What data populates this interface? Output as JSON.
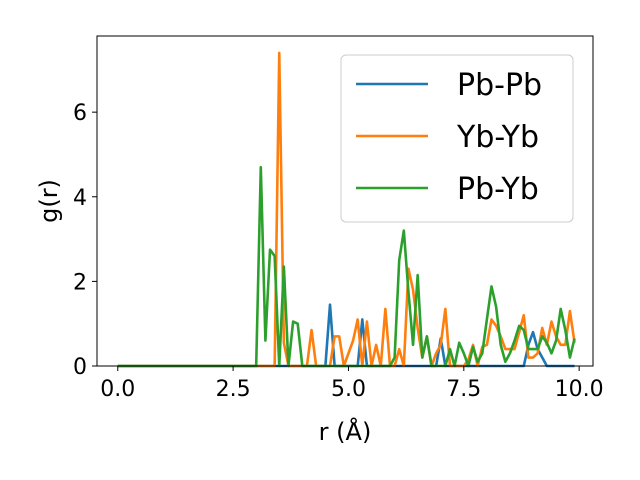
{
  "chart_data": {
    "type": "line",
    "title": "",
    "xlabel": "r (Å)",
    "ylabel": "g(r)",
    "xlim": [
      -0.45,
      10.3
    ],
    "ylim": [
      0,
      7.8
    ],
    "xticks": [
      0.0,
      2.5,
      5.0,
      7.5,
      10.0
    ],
    "xtick_labels": [
      "0.0",
      "2.5",
      "5.0",
      "7.5",
      "10.0"
    ],
    "yticks": [
      0,
      2,
      4,
      6
    ],
    "ytick_labels": [
      "0",
      "2",
      "4",
      "6"
    ],
    "grid": false,
    "legend": "top-right",
    "series": [
      {
        "name": "Pb-Pb",
        "color": "#1f77b4",
        "points": [
          [
            0,
            0
          ],
          [
            4.5,
            0
          ],
          [
            4.6,
            1.45
          ],
          [
            4.7,
            0
          ],
          [
            5.2,
            0
          ],
          [
            5.3,
            1.1
          ],
          [
            5.4,
            0
          ],
          [
            6.9,
            0
          ],
          [
            7.0,
            0.65
          ],
          [
            7.1,
            0
          ],
          [
            8.8,
            0
          ],
          [
            8.9,
            0.5
          ],
          [
            9.0,
            0.8
          ],
          [
            9.1,
            0.4
          ],
          [
            9.2,
            0.2
          ],
          [
            9.3,
            0
          ],
          [
            9.9,
            0
          ]
        ]
      },
      {
        "name": "Yb-Yb",
        "color": "#ff7f0e",
        "points": [
          [
            0,
            0
          ],
          [
            3.4,
            0
          ],
          [
            3.5,
            7.4
          ],
          [
            3.6,
            0.55
          ],
          [
            3.7,
            0
          ],
          [
            4.1,
            0
          ],
          [
            4.2,
            0.85
          ],
          [
            4.3,
            0
          ],
          [
            4.6,
            0
          ],
          [
            4.7,
            0.7
          ],
          [
            4.8,
            0.7
          ],
          [
            4.9,
            0
          ],
          [
            5.1,
            0.6
          ],
          [
            5.2,
            1.1
          ],
          [
            5.3,
            0
          ],
          [
            5.4,
            1.05
          ],
          [
            5.5,
            0
          ],
          [
            5.6,
            0.5
          ],
          [
            5.7,
            0
          ],
          [
            5.8,
            1.35
          ],
          [
            5.9,
            0
          ],
          [
            6.0,
            0
          ],
          [
            6.1,
            0.4
          ],
          [
            6.2,
            0
          ],
          [
            6.3,
            2.3
          ],
          [
            6.4,
            1.8
          ],
          [
            6.5,
            0.9
          ],
          [
            6.6,
            0.2
          ],
          [
            6.7,
            0.7
          ],
          [
            6.8,
            0
          ],
          [
            6.9,
            0.3
          ],
          [
            7.0,
            0.5
          ],
          [
            7.1,
            1.35
          ],
          [
            7.2,
            0
          ],
          [
            7.5,
            0
          ],
          [
            7.6,
            0.15
          ],
          [
            7.7,
            0.5
          ],
          [
            7.8,
            0
          ],
          [
            7.9,
            0.45
          ],
          [
            8.0,
            0.5
          ],
          [
            8.1,
            1.1
          ],
          [
            8.2,
            0.95
          ],
          [
            8.3,
            0.7
          ],
          [
            8.4,
            0.4
          ],
          [
            8.5,
            0.4
          ],
          [
            8.6,
            0.4
          ],
          [
            8.7,
            0.8
          ],
          [
            8.8,
            1.2
          ],
          [
            8.9,
            0.2
          ],
          [
            9.0,
            0.2
          ],
          [
            9.1,
            0.3
          ],
          [
            9.2,
            0.9
          ],
          [
            9.3,
            0.5
          ],
          [
            9.4,
            1.05
          ],
          [
            9.5,
            0.7
          ],
          [
            9.6,
            0.5
          ],
          [
            9.7,
            0.5
          ],
          [
            9.8,
            1.3
          ],
          [
            9.9,
            0.55
          ]
        ]
      },
      {
        "name": "Pb-Yb",
        "color": "#2ca02c",
        "points": [
          [
            0,
            0
          ],
          [
            3.0,
            0
          ],
          [
            3.1,
            4.7
          ],
          [
            3.2,
            0.6
          ],
          [
            3.3,
            2.75
          ],
          [
            3.4,
            2.6
          ],
          [
            3.5,
            0
          ],
          [
            3.6,
            2.35
          ],
          [
            3.7,
            0
          ],
          [
            3.8,
            1.05
          ],
          [
            3.9,
            1.0
          ],
          [
            4.0,
            0
          ],
          [
            5.9,
            0
          ],
          [
            6.0,
            0.2
          ],
          [
            6.1,
            2.5
          ],
          [
            6.2,
            3.2
          ],
          [
            6.3,
            1.75
          ],
          [
            6.4,
            0.5
          ],
          [
            6.5,
            2.15
          ],
          [
            6.6,
            0.2
          ],
          [
            6.7,
            0.7
          ],
          [
            6.8,
            0
          ],
          [
            7.1,
            0
          ],
          [
            7.2,
            0.4
          ],
          [
            7.3,
            0
          ],
          [
            7.4,
            0.55
          ],
          [
            7.5,
            0.3
          ],
          [
            7.6,
            0
          ],
          [
            7.7,
            0.45
          ],
          [
            7.8,
            0.1
          ],
          [
            7.9,
            0.3
          ],
          [
            8.0,
            1.1
          ],
          [
            8.1,
            1.88
          ],
          [
            8.2,
            1.4
          ],
          [
            8.3,
            0.5
          ],
          [
            8.4,
            0.1
          ],
          [
            8.5,
            0.3
          ],
          [
            8.6,
            0.6
          ],
          [
            8.7,
            0.95
          ],
          [
            8.8,
            0.85
          ],
          [
            8.9,
            0.4
          ],
          [
            9.0,
            0.4
          ],
          [
            9.1,
            0.4
          ],
          [
            9.2,
            0.7
          ],
          [
            9.3,
            0.55
          ],
          [
            9.4,
            0.3
          ],
          [
            9.5,
            0.6
          ],
          [
            9.6,
            1.35
          ],
          [
            9.7,
            0.85
          ],
          [
            9.8,
            0.2
          ],
          [
            9.9,
            0.65
          ]
        ]
      }
    ]
  }
}
